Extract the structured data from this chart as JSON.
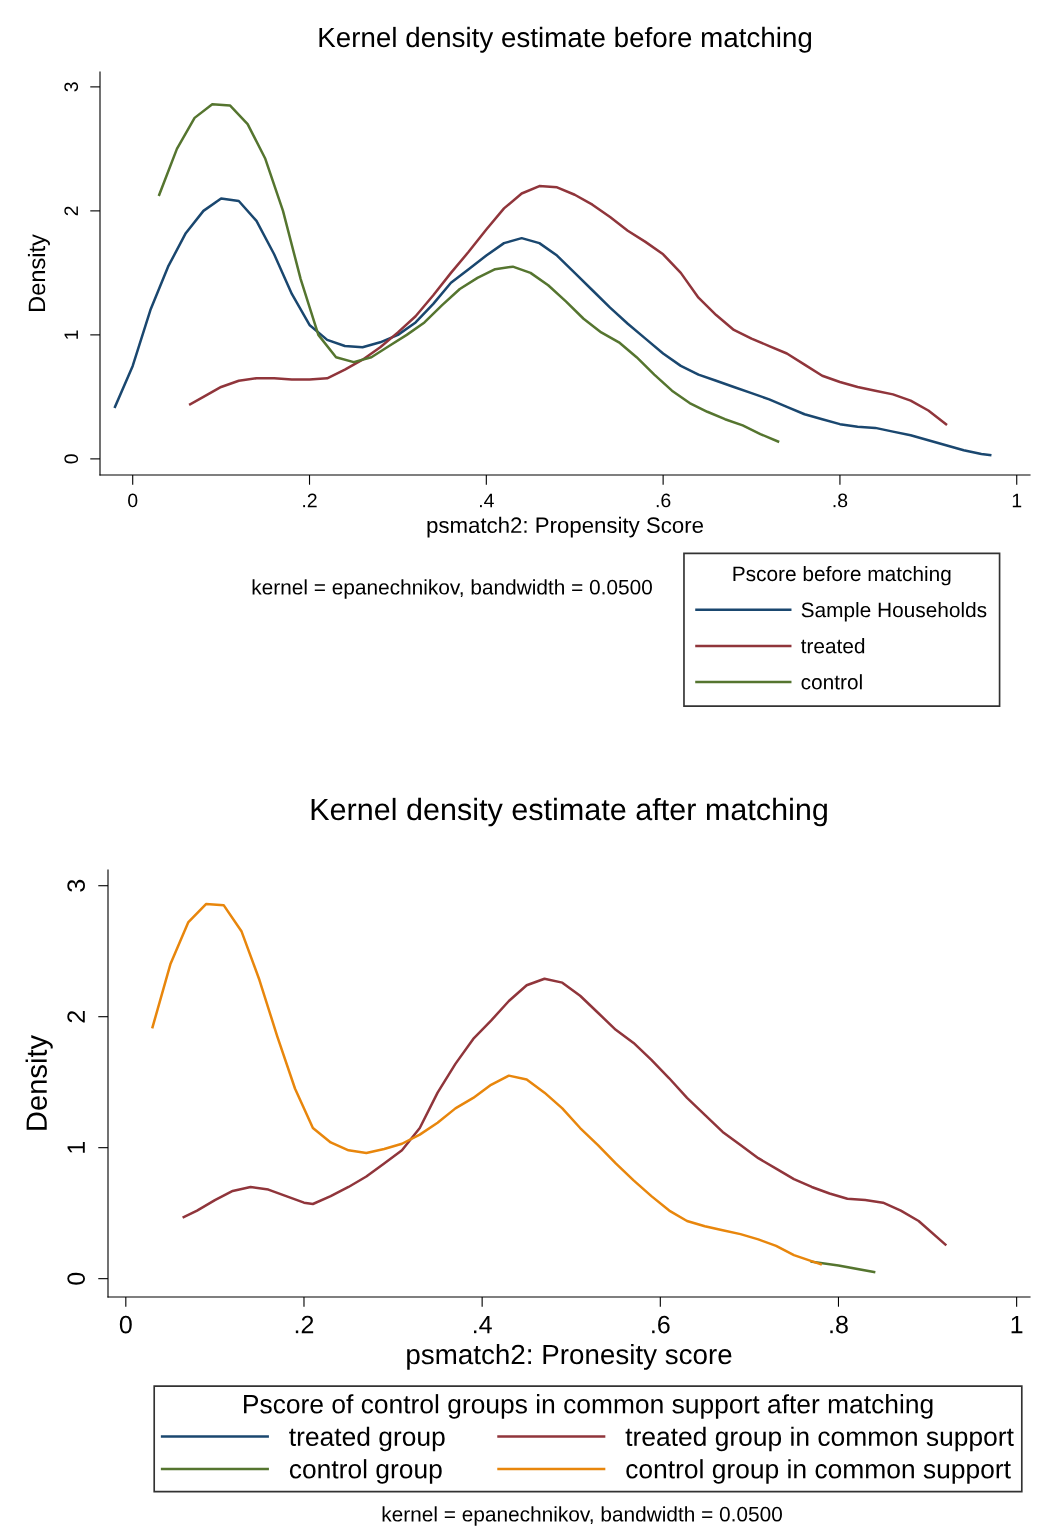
{
  "chart_data": [
    {
      "type": "line",
      "title": "Kernel density estimate before matching",
      "xlabel": "psmatch2: Propensity Score",
      "ylabel": "Density",
      "legend_title": "Pscore before matching",
      "legend": "bottom right",
      "annotations": [
        "kernel = epanechnikov, bandwidth = 0.0500"
      ],
      "xlim": [
        -0.037,
        1.015
      ],
      "ylim": [
        -0.13,
        3.12
      ],
      "xticks": [
        0,
        {
          "value": 0.2,
          "label": ".2"
        },
        {
          "value": 0.4,
          "label": ".4"
        },
        {
          "value": 0.6,
          "label": ".6"
        },
        {
          "value": 0.8,
          "label": ".8"
        },
        1
      ],
      "yticks": [
        0,
        1,
        2,
        3
      ],
      "grid": false,
      "marker": "none",
      "line_style": "solid",
      "series": [
        {
          "name": "Sample Households",
          "color": "#1a476f",
          "x": [
            -0.02,
            0,
            0.02,
            0.04,
            0.06,
            0.08,
            0.1,
            0.12,
            0.14,
            0.16,
            0.18,
            0.2,
            0.22,
            0.24,
            0.26,
            0.28,
            0.3,
            0.32,
            0.34,
            0.36,
            0.38,
            0.4,
            0.42,
            0.44,
            0.46,
            0.48,
            0.5,
            0.52,
            0.54,
            0.56,
            0.58,
            0.6,
            0.62,
            0.64,
            0.66,
            0.68,
            0.7,
            0.72,
            0.74,
            0.76,
            0.78,
            0.8,
            0.82,
            0.84,
            0.86,
            0.88,
            0.9,
            0.92,
            0.94,
            0.96,
            0.97
          ],
          "values": [
            0.42,
            0.75,
            1.2,
            1.55,
            1.82,
            2.0,
            2.1,
            2.08,
            1.92,
            1.65,
            1.33,
            1.08,
            0.96,
            0.91,
            0.9,
            0.94,
            1.0,
            1.1,
            1.25,
            1.42,
            1.53,
            1.64,
            1.74,
            1.78,
            1.74,
            1.64,
            1.5,
            1.36,
            1.22,
            1.09,
            0.97,
            0.85,
            0.75,
            0.68,
            0.63,
            0.58,
            0.53,
            0.48,
            0.42,
            0.36,
            0.32,
            0.28,
            0.26,
            0.25,
            0.22,
            0.19,
            0.15,
            0.11,
            0.07,
            0.04,
            0.03
          ]
        },
        {
          "name": "treated",
          "color": "#90353b",
          "x": [
            0.065,
            0.08,
            0.1,
            0.12,
            0.14,
            0.16,
            0.18,
            0.2,
            0.22,
            0.24,
            0.26,
            0.28,
            0.3,
            0.32,
            0.34,
            0.36,
            0.38,
            0.4,
            0.42,
            0.44,
            0.46,
            0.48,
            0.5,
            0.52,
            0.54,
            0.56,
            0.58,
            0.6,
            0.62,
            0.64,
            0.66,
            0.68,
            0.7,
            0.72,
            0.74,
            0.76,
            0.78,
            0.8,
            0.82,
            0.84,
            0.86,
            0.88,
            0.9,
            0.92
          ],
          "values": [
            0.44,
            0.5,
            0.58,
            0.63,
            0.65,
            0.65,
            0.64,
            0.64,
            0.65,
            0.72,
            0.8,
            0.9,
            1.02,
            1.15,
            1.32,
            1.5,
            1.67,
            1.85,
            2.02,
            2.14,
            2.2,
            2.19,
            2.13,
            2.05,
            1.95,
            1.84,
            1.75,
            1.65,
            1.5,
            1.3,
            1.16,
            1.04,
            0.97,
            0.91,
            0.85,
            0.76,
            0.67,
            0.62,
            0.58,
            0.55,
            0.52,
            0.47,
            0.39,
            0.28
          ]
        },
        {
          "name": "control",
          "color": "#55752f",
          "x": [
            0.03,
            0.05,
            0.07,
            0.09,
            0.11,
            0.13,
            0.15,
            0.17,
            0.19,
            0.21,
            0.23,
            0.25,
            0.27,
            0.29,
            0.31,
            0.33,
            0.35,
            0.37,
            0.39,
            0.41,
            0.43,
            0.45,
            0.47,
            0.49,
            0.51,
            0.53,
            0.55,
            0.57,
            0.59,
            0.61,
            0.63,
            0.65,
            0.67,
            0.69,
            0.71,
            0.73
          ],
          "values": [
            2.13,
            2.5,
            2.75,
            2.86,
            2.85,
            2.7,
            2.42,
            2.0,
            1.45,
            1.0,
            0.82,
            0.78,
            0.82,
            0.91,
            1.0,
            1.1,
            1.24,
            1.37,
            1.46,
            1.53,
            1.55,
            1.5,
            1.4,
            1.27,
            1.13,
            1.02,
            0.94,
            0.82,
            0.68,
            0.55,
            0.45,
            0.38,
            0.32,
            0.27,
            0.2,
            0.14
          ]
        }
      ]
    },
    {
      "type": "line",
      "title": "Kernel density estimate after matching",
      "xlabel": "psmatch2: Pronesity score",
      "ylabel": "Density",
      "legend_title": "Pscore of control groups in common support after matching",
      "legend": "bottom",
      "annotations": [
        "kernel = epanechnikov, bandwidth = 0.0500"
      ],
      "xlim": [
        -0.02,
        1.015
      ],
      "ylim": [
        -0.14,
        3.12
      ],
      "xticks": [
        0,
        {
          "value": 0.2,
          "label": ".2"
        },
        {
          "value": 0.4,
          "label": ".4"
        },
        {
          "value": 0.6,
          "label": ".6"
        },
        {
          "value": 0.8,
          "label": ".8"
        },
        1
      ],
      "yticks": [
        0,
        1,
        2,
        3
      ],
      "grid": false,
      "marker": "none",
      "line_style": "solid",
      "series": [
        {
          "name": "treated group",
          "color": "#1a476f"
        },
        {
          "name": "control group",
          "color": "#55752f",
          "x": [
            0.77,
            0.8,
            0.84
          ],
          "values": [
            0.13,
            0.1,
            0.05
          ]
        },
        {
          "name": "treated group in common support",
          "color": "#90353b",
          "x": [
            0.065,
            0.08,
            0.1,
            0.12,
            0.14,
            0.16,
            0.18,
            0.2,
            0.21,
            0.23,
            0.25,
            0.27,
            0.29,
            0.31,
            0.33,
            0.35,
            0.37,
            0.39,
            0.41,
            0.43,
            0.45,
            0.47,
            0.49,
            0.51,
            0.53,
            0.55,
            0.57,
            0.59,
            0.61,
            0.63,
            0.65,
            0.67,
            0.69,
            0.71,
            0.73,
            0.75,
            0.77,
            0.79,
            0.81,
            0.83,
            0.85,
            0.87,
            0.89,
            0.92
          ],
          "values": [
            0.47,
            0.52,
            0.6,
            0.67,
            0.7,
            0.68,
            0.63,
            0.58,
            0.57,
            0.63,
            0.7,
            0.78,
            0.88,
            0.98,
            1.15,
            1.42,
            1.64,
            1.83,
            1.97,
            2.12,
            2.24,
            2.29,
            2.26,
            2.16,
            2.03,
            1.9,
            1.8,
            1.67,
            1.53,
            1.38,
            1.25,
            1.12,
            1.02,
            0.92,
            0.84,
            0.76,
            0.7,
            0.65,
            0.61,
            0.6,
            0.58,
            0.52,
            0.44,
            0.26
          ]
        },
        {
          "name": "control group in common support",
          "color": "#e8860c",
          "x": [
            0.03,
            0.05,
            0.07,
            0.09,
            0.11,
            0.13,
            0.15,
            0.17,
            0.19,
            0.21,
            0.23,
            0.25,
            0.27,
            0.29,
            0.31,
            0.33,
            0.35,
            0.37,
            0.39,
            0.41,
            0.43,
            0.45,
            0.47,
            0.49,
            0.51,
            0.53,
            0.55,
            0.57,
            0.59,
            0.61,
            0.63,
            0.65,
            0.67,
            0.69,
            0.71,
            0.73,
            0.75,
            0.78
          ],
          "values": [
            1.92,
            2.4,
            2.72,
            2.86,
            2.85,
            2.65,
            2.28,
            1.85,
            1.45,
            1.15,
            1.04,
            0.98,
            0.96,
            0.99,
            1.03,
            1.1,
            1.19,
            1.3,
            1.38,
            1.48,
            1.55,
            1.52,
            1.42,
            1.3,
            1.15,
            1.02,
            0.88,
            0.75,
            0.63,
            0.52,
            0.44,
            0.4,
            0.37,
            0.34,
            0.3,
            0.25,
            0.18,
            0.11
          ]
        }
      ]
    }
  ]
}
